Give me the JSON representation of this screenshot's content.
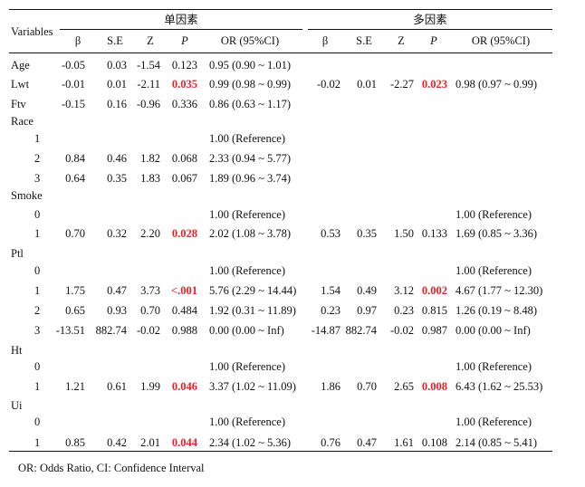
{
  "header": {
    "variables": "Variables",
    "uni_group": "单因素",
    "multi_group": "多因素",
    "cols": [
      "β",
      "S.E",
      "Z",
      "P",
      "OR (95%CI)"
    ]
  },
  "rows": [
    {
      "var": "Age",
      "u": [
        "-0.05",
        "0.03",
        "-1.54",
        "0.123",
        "0.95 (0.90 ~ 1.01)"
      ],
      "us": false,
      "m": null,
      "ms": false
    },
    {
      "var": "Lwt",
      "u": [
        "-0.01",
        "0.01",
        "-2.11",
        "0.035",
        "0.99 (0.98 ~ 0.99)"
      ],
      "us": true,
      "m": [
        "-0.02",
        "0.01",
        "-2.27",
        "0.023",
        "0.98 (0.97 ~ 0.99)"
      ],
      "ms": true
    },
    {
      "var": "Ftv",
      "u": [
        "-0.15",
        "0.16",
        "-0.96",
        "0.336",
        "0.86 (0.63 ~ 1.17)"
      ],
      "us": false,
      "m": null,
      "ms": false
    },
    {
      "var": "Race",
      "u": null,
      "us": false,
      "m": null,
      "ms": false
    },
    {
      "var": "1",
      "u": [
        "",
        "",
        "",
        "",
        "1.00 (Reference)"
      ],
      "us": false,
      "m": null,
      "ms": false
    },
    {
      "var": "2",
      "u": [
        "0.84",
        "0.46",
        "1.82",
        "0.068",
        "2.33 (0.94 ~ 5.77)"
      ],
      "us": false,
      "m": null,
      "ms": false
    },
    {
      "var": "3",
      "u": [
        "0.64",
        "0.35",
        "1.83",
        "0.067",
        "1.89 (0.96 ~ 3.74)"
      ],
      "us": false,
      "m": null,
      "ms": false
    },
    {
      "var": "Smoke",
      "u": null,
      "us": false,
      "m": null,
      "ms": false
    },
    {
      "var": "0",
      "u": [
        "",
        "",
        "",
        "",
        "1.00 (Reference)"
      ],
      "us": false,
      "m": [
        "",
        "",
        "",
        "",
        "1.00 (Reference)"
      ],
      "ms": false
    },
    {
      "var": "1",
      "u": [
        "0.70",
        "0.32",
        "2.20",
        "0.028",
        "2.02 (1.08 ~ 3.78)"
      ],
      "us": true,
      "m": [
        "0.53",
        "0.35",
        "1.50",
        "0.133",
        "1.69 (0.85 ~ 3.36)"
      ],
      "ms": false
    },
    {
      "var": "Ptl",
      "u": null,
      "us": false,
      "m": null,
      "ms": false
    },
    {
      "var": "0",
      "u": [
        "",
        "",
        "",
        "",
        "1.00 (Reference)"
      ],
      "us": false,
      "m": [
        "",
        "",
        "",
        "",
        "1.00 (Reference)"
      ],
      "ms": false
    },
    {
      "var": "1",
      "u": [
        "1.75",
        "0.47",
        "3.73",
        "<.001",
        "5.76 (2.29 ~ 14.44)"
      ],
      "us": true,
      "m": [
        "1.54",
        "0.49",
        "3.12",
        "0.002",
        "4.67 (1.77 ~ 12.30)"
      ],
      "ms": true
    },
    {
      "var": "2",
      "u": [
        "0.65",
        "0.93",
        "0.70",
        "0.484",
        "1.92 (0.31 ~ 11.89)"
      ],
      "us": false,
      "m": [
        "0.23",
        "0.97",
        "0.23",
        "0.815",
        "1.26 (0.19 ~ 8.48)"
      ],
      "ms": false
    },
    {
      "var": "3",
      "u": [
        "-13.51",
        "882.74",
        "-0.02",
        "0.988",
        "0.00 (0.00 ~ Inf)"
      ],
      "us": false,
      "m": [
        "-14.87",
        "882.74",
        "-0.02",
        "0.987",
        "0.00 (0.00 ~ Inf)"
      ],
      "ms": false
    },
    {
      "var": "Ht",
      "u": null,
      "us": false,
      "m": null,
      "ms": false
    },
    {
      "var": "0",
      "u": [
        "",
        "",
        "",
        "",
        "1.00 (Reference)"
      ],
      "us": false,
      "m": [
        "",
        "",
        "",
        "",
        "1.00 (Reference)"
      ],
      "ms": false
    },
    {
      "var": "1",
      "u": [
        "1.21",
        "0.61",
        "1.99",
        "0.046",
        "3.37 (1.02 ~ 11.09)"
      ],
      "us": true,
      "m": [
        "1.86",
        "0.70",
        "2.65",
        "0.008",
        "6.43 (1.62 ~ 25.53)"
      ],
      "ms": true
    },
    {
      "var": "Ui",
      "u": null,
      "us": false,
      "m": null,
      "ms": false
    },
    {
      "var": "0",
      "u": [
        "",
        "",
        "",
        "",
        "1.00 (Reference)"
      ],
      "us": false,
      "m": [
        "",
        "",
        "",
        "",
        "1.00 (Reference)"
      ],
      "ms": false
    },
    {
      "var": "1",
      "u": [
        "0.85",
        "0.42",
        "2.01",
        "0.044",
        "2.34 (1.02 ~ 5.36)"
      ],
      "us": true,
      "m": [
        "0.76",
        "0.47",
        "1.61",
        "0.108",
        "2.14 (0.85 ~ 5.41)"
      ],
      "ms": false
    }
  ],
  "footnote": "OR: Odds Ratio, CI: Confidence Interval"
}
